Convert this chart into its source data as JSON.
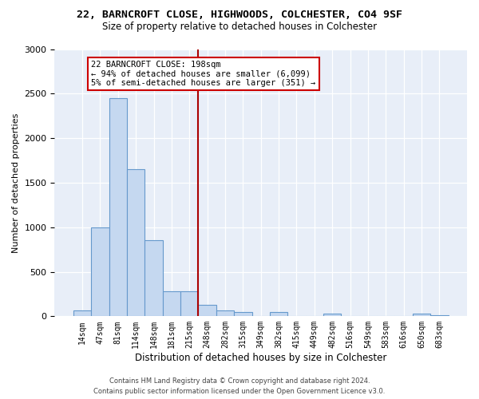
{
  "title1": "22, BARNCROFT CLOSE, HIGHWOODS, COLCHESTER, CO4 9SF",
  "title2": "Size of property relative to detached houses in Colchester",
  "xlabel": "Distribution of detached houses by size in Colchester",
  "ylabel": "Number of detached properties",
  "categories": [
    "14sqm",
    "47sqm",
    "81sqm",
    "114sqm",
    "148sqm",
    "181sqm",
    "215sqm",
    "248sqm",
    "282sqm",
    "315sqm",
    "349sqm",
    "382sqm",
    "415sqm",
    "449sqm",
    "482sqm",
    "516sqm",
    "549sqm",
    "583sqm",
    "616sqm",
    "650sqm",
    "683sqm"
  ],
  "values": [
    70,
    1000,
    2450,
    1650,
    850,
    280,
    280,
    130,
    65,
    50,
    0,
    50,
    0,
    0,
    30,
    0,
    0,
    0,
    0,
    30,
    10
  ],
  "bar_color": "#c5d8f0",
  "bar_edge_color": "#6699cc",
  "property_label": "22 BARNCROFT CLOSE: 198sqm",
  "annotation_line1": "← 94% of detached houses are smaller (6,099)",
  "annotation_line2": "5% of semi-detached houses are larger (351) →",
  "vline_color": "#aa0000",
  "annotation_box_color": "#cc0000",
  "footer1": "Contains HM Land Registry data © Crown copyright and database right 2024.",
  "footer2": "Contains public sector information licensed under the Open Government Licence v3.0.",
  "ylim": [
    0,
    3000
  ],
  "yticks": [
    0,
    500,
    1000,
    1500,
    2000,
    2500,
    3000
  ],
  "background_color": "#e8eef8",
  "title1_fontsize": 9.5,
  "title2_fontsize": 8.5
}
